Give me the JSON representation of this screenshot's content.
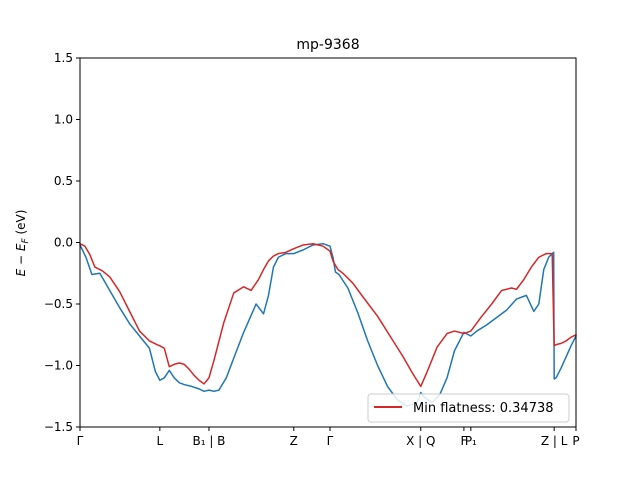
{
  "chart_data": {
    "type": "line",
    "title": "mp-9368",
    "xlabel": "",
    "ylabel": "E − E_F (eV)",
    "ylim": [
      -1.5,
      1.5
    ],
    "xlim": [
      0,
      1
    ],
    "y_ticks": [
      -1.5,
      -1.0,
      -0.5,
      0.0,
      0.5,
      1.0,
      1.5
    ],
    "y_tick_labels": [
      "−1.5",
      "−1.0",
      "−0.5",
      "0.0",
      "0.5",
      "1.0",
      "1.5"
    ],
    "x_ticks": [
      {
        "x": 0.0,
        "label": "Γ"
      },
      {
        "x": 0.161,
        "label": "L"
      },
      {
        "x": 0.26,
        "label": "B₁ | B"
      },
      {
        "x": 0.431,
        "label": "Z"
      },
      {
        "x": 0.504,
        "label": "Γ"
      },
      {
        "x": 0.687,
        "label": "X | Q"
      },
      {
        "x": 0.774,
        "label": "F"
      },
      {
        "x": 0.788,
        "label": "P₁"
      },
      {
        "x": 0.956,
        "label": "Z | L"
      },
      {
        "x": 1.0,
        "label": "P"
      }
    ],
    "legend": {
      "position": "lower-right",
      "label": "Min flatness: 0.34738"
    },
    "colors": {
      "blue": "#1f77b4",
      "red": "#d62728"
    },
    "series": [
      {
        "color": "#1f77b4",
        "x": [
          0.0,
          0.012,
          0.024,
          0.04,
          0.06,
          0.08,
          0.1,
          0.12,
          0.14,
          0.152,
          0.161,
          0.17,
          0.18,
          0.19,
          0.2,
          0.21,
          0.225,
          0.24,
          0.25,
          0.26,
          0.27,
          0.28,
          0.295,
          0.31,
          0.33,
          0.355,
          0.37,
          0.38,
          0.39,
          0.4,
          0.415,
          0.431,
          0.45,
          0.47,
          0.49,
          0.504,
          0.51,
          0.515,
          0.522,
          0.54,
          0.56,
          0.58,
          0.6,
          0.62,
          0.64,
          0.66,
          0.68,
          0.687,
          0.695,
          0.71,
          0.725,
          0.74,
          0.755,
          0.774,
          0.788,
          0.8,
          0.82,
          0.84,
          0.86,
          0.88,
          0.9,
          0.915,
          0.925,
          0.935,
          0.945,
          0.952,
          0.955,
          0.956,
          0.96,
          0.97,
          0.98,
          0.99,
          1.0
        ],
        "y": [
          -0.02,
          -0.12,
          -0.26,
          -0.25,
          -0.39,
          -0.53,
          -0.66,
          -0.76,
          -0.86,
          -1.05,
          -1.12,
          -1.1,
          -1.04,
          -1.1,
          -1.14,
          -1.155,
          -1.17,
          -1.19,
          -1.21,
          -1.2,
          -1.21,
          -1.2,
          -1.1,
          -0.94,
          -0.73,
          -0.5,
          -0.58,
          -0.43,
          -0.2,
          -0.12,
          -0.09,
          -0.09,
          -0.06,
          -0.02,
          -0.01,
          -0.03,
          -0.12,
          -0.24,
          -0.26,
          -0.37,
          -0.57,
          -0.8,
          -1.0,
          -1.17,
          -1.28,
          -1.33,
          -1.3,
          -1.22,
          -1.26,
          -1.3,
          -1.24,
          -1.1,
          -0.88,
          -0.73,
          -0.76,
          -0.72,
          -0.67,
          -0.61,
          -0.55,
          -0.46,
          -0.43,
          -0.56,
          -0.5,
          -0.22,
          -0.12,
          -0.09,
          -0.08,
          -1.11,
          -1.1,
          -1.02,
          -0.93,
          -0.84,
          -0.76
        ]
      },
      {
        "color": "#d62728",
        "x": [
          0.0,
          0.01,
          0.02,
          0.03,
          0.045,
          0.06,
          0.08,
          0.1,
          0.12,
          0.14,
          0.155,
          0.161,
          0.17,
          0.18,
          0.19,
          0.2,
          0.21,
          0.22,
          0.23,
          0.24,
          0.25,
          0.26,
          0.27,
          0.29,
          0.31,
          0.33,
          0.345,
          0.36,
          0.37,
          0.38,
          0.39,
          0.4,
          0.415,
          0.431,
          0.45,
          0.47,
          0.49,
          0.504,
          0.51,
          0.52,
          0.53,
          0.55,
          0.57,
          0.6,
          0.625,
          0.65,
          0.67,
          0.687,
          0.7,
          0.72,
          0.74,
          0.755,
          0.774,
          0.788,
          0.81,
          0.83,
          0.85,
          0.87,
          0.88,
          0.895,
          0.91,
          0.925,
          0.94,
          0.952,
          0.956,
          0.96,
          0.97,
          0.98,
          0.99,
          1.0
        ],
        "y": [
          -0.01,
          -0.03,
          -0.1,
          -0.2,
          -0.23,
          -0.28,
          -0.4,
          -0.56,
          -0.72,
          -0.8,
          -0.83,
          -0.84,
          -0.86,
          -1.01,
          -0.99,
          -0.98,
          -0.99,
          -1.03,
          -1.08,
          -1.12,
          -1.15,
          -1.1,
          -0.96,
          -0.65,
          -0.41,
          -0.36,
          -0.39,
          -0.3,
          -0.22,
          -0.15,
          -0.11,
          -0.09,
          -0.08,
          -0.05,
          -0.02,
          -0.01,
          -0.03,
          -0.07,
          -0.15,
          -0.22,
          -0.25,
          -0.33,
          -0.44,
          -0.6,
          -0.76,
          -0.92,
          -1.06,
          -1.17,
          -1.05,
          -0.85,
          -0.74,
          -0.72,
          -0.74,
          -0.72,
          -0.6,
          -0.5,
          -0.39,
          -0.37,
          -0.38,
          -0.3,
          -0.2,
          -0.12,
          -0.09,
          -0.09,
          -0.84,
          -0.83,
          -0.82,
          -0.8,
          -0.77,
          -0.75
        ]
      }
    ]
  }
}
